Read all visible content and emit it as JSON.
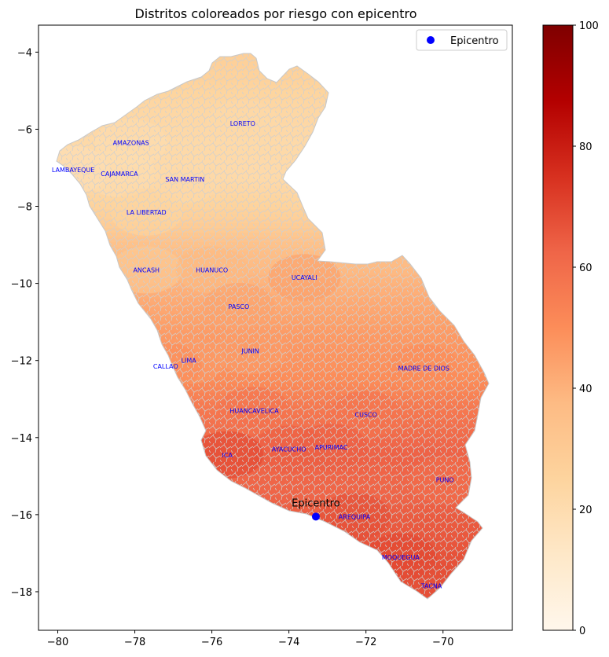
{
  "chart_data": {
    "type": "choropleth",
    "title": "Distritos coloreados por riesgo con epicentro",
    "xlabel": "",
    "ylabel": "",
    "xlim": [
      -80.5,
      -68.2
    ],
    "ylim": [
      -19.0,
      -3.3
    ],
    "x_ticks": [
      -80,
      -78,
      -76,
      -74,
      -72,
      -70
    ],
    "y_ticks": [
      -4,
      -6,
      -8,
      -10,
      -12,
      -14,
      -16,
      -18
    ],
    "x_tick_labels": [
      "−80",
      "−78",
      "−76",
      "−74",
      "−72",
      "−70"
    ],
    "y_tick_labels": [
      "−4",
      "−6",
      "−8",
      "−10",
      "−12",
      "−14",
      "−16",
      "−18"
    ],
    "colorbar": {
      "cmap": "OrRd",
      "range": [
        0,
        100
      ],
      "ticks": [
        0,
        20,
        40,
        60,
        80,
        100
      ],
      "tick_labels": [
        "0",
        "20",
        "40",
        "60",
        "80",
        "100"
      ]
    },
    "legend": {
      "placement": "top-right",
      "label": "Epicentro",
      "marker_color": "#0000ff"
    },
    "epicentro": {
      "lon": -73.3,
      "lat": -16.05,
      "label": "Epicentro"
    },
    "regions": [
      {
        "name": "LORETO",
        "lon": -75.2,
        "lat": -5.85,
        "risk": 22
      },
      {
        "name": "AMAZONAS",
        "lon": -78.1,
        "lat": -6.35,
        "risk": 20
      },
      {
        "name": "LAMBAYEQUE",
        "lon": -79.6,
        "lat": -7.05,
        "risk": 18
      },
      {
        "name": "CAJAMARCA",
        "lon": -78.4,
        "lat": -7.15,
        "risk": 20
      },
      {
        "name": "SAN MARTIN",
        "lon": -76.7,
        "lat": -7.3,
        "risk": 22
      },
      {
        "name": "LA LIBERTAD",
        "lon": -77.7,
        "lat": -8.15,
        "risk": 24
      },
      {
        "name": "ANCASH",
        "lon": -77.7,
        "lat": -9.65,
        "risk": 30
      },
      {
        "name": "HUANUCO",
        "lon": -76.0,
        "lat": -9.65,
        "risk": 38
      },
      {
        "name": "UCAYALI",
        "lon": -73.6,
        "lat": -9.85,
        "risk": 46
      },
      {
        "name": "PASCO",
        "lon": -75.3,
        "lat": -10.6,
        "risk": 44
      },
      {
        "name": "JUNIN",
        "lon": -75.0,
        "lat": -11.75,
        "risk": 46
      },
      {
        "name": "LIMA",
        "lon": -76.6,
        "lat": -12.0,
        "risk": 46
      },
      {
        "name": "CALLAO",
        "lon": -77.2,
        "lat": -12.15,
        "risk": 50
      },
      {
        "name": "MADRE DE DIOS",
        "lon": -70.5,
        "lat": -12.2,
        "risk": 50
      },
      {
        "name": "HUANCAVELICA",
        "lon": -74.9,
        "lat": -13.3,
        "risk": 58
      },
      {
        "name": "CUSCO",
        "lon": -72.0,
        "lat": -13.4,
        "risk": 58
      },
      {
        "name": "AYACUCHO",
        "lon": -74.0,
        "lat": -14.3,
        "risk": 64
      },
      {
        "name": "APURIMAC",
        "lon": -72.9,
        "lat": -14.25,
        "risk": 64
      },
      {
        "name": "ICA",
        "lon": -75.6,
        "lat": -14.45,
        "risk": 70
      },
      {
        "name": "PUNO",
        "lon": -69.95,
        "lat": -15.1,
        "risk": 60
      },
      {
        "name": "AREQUIPA",
        "lon": -72.3,
        "lat": -16.05,
        "risk": 68
      },
      {
        "name": "MOQUEGUA",
        "lon": -71.1,
        "lat": -17.1,
        "risk": 70
      },
      {
        "name": "TACNA",
        "lon": -70.3,
        "lat": -17.85,
        "risk": 68
      }
    ]
  }
}
